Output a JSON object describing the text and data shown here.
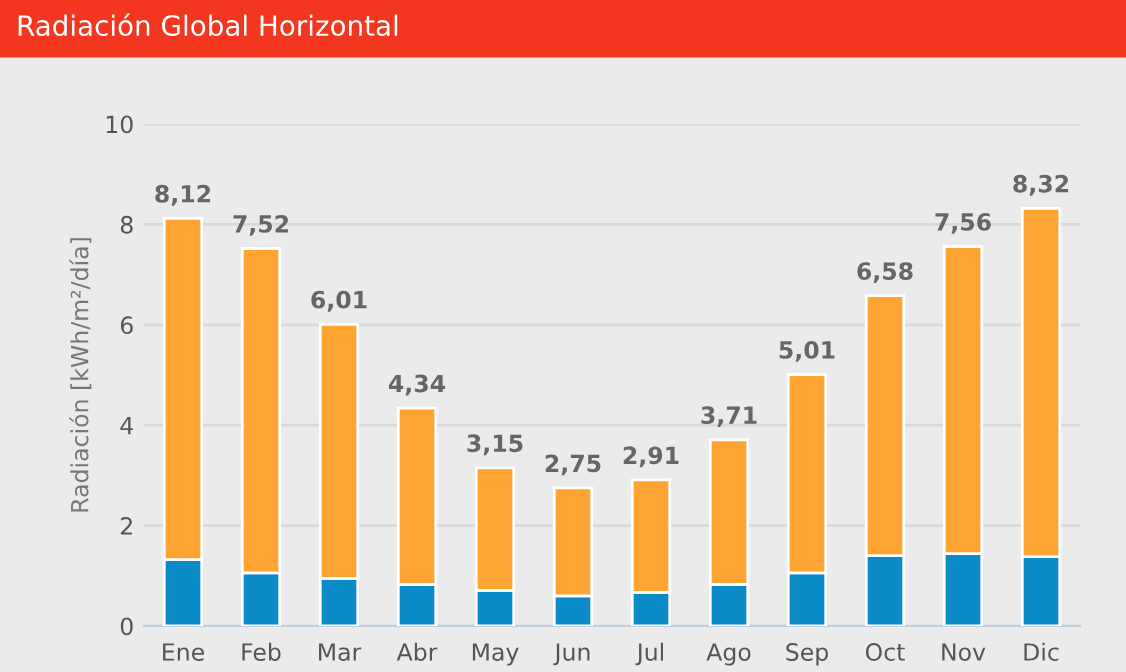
{
  "chart_data": {
    "type": "bar",
    "title": "Radiación Global Horizontal",
    "ylabel": "Radiación [kWh/m²/día]",
    "categories": [
      "Ene",
      "Feb",
      "Mar",
      "Abr",
      "May",
      "Jun",
      "Jul",
      "Ago",
      "Sep",
      "Oct",
      "Nov",
      "Dic"
    ],
    "stacked": true,
    "series": [
      {
        "color": "#0a8ac6",
        "values": [
          1.32,
          1.06,
          0.95,
          0.83,
          0.71,
          0.6,
          0.67,
          0.83,
          1.06,
          1.4,
          1.44,
          1.38
        ]
      },
      {
        "color": "#ffa333",
        "values": [
          6.8,
          6.46,
          5.06,
          3.51,
          2.44,
          2.15,
          2.24,
          2.88,
          3.95,
          5.18,
          6.12,
          6.94
        ]
      }
    ],
    "totals": [
      "8,12",
      "7,52",
      "6,01",
      "4,34",
      "3,15",
      "2,75",
      "2,91",
      "3,71",
      "5,01",
      "6,58",
      "7,56",
      "8,32"
    ],
    "ylim": [
      0,
      10
    ],
    "yticks": [
      0,
      2,
      4,
      6,
      8,
      10
    ],
    "grid": "y"
  }
}
